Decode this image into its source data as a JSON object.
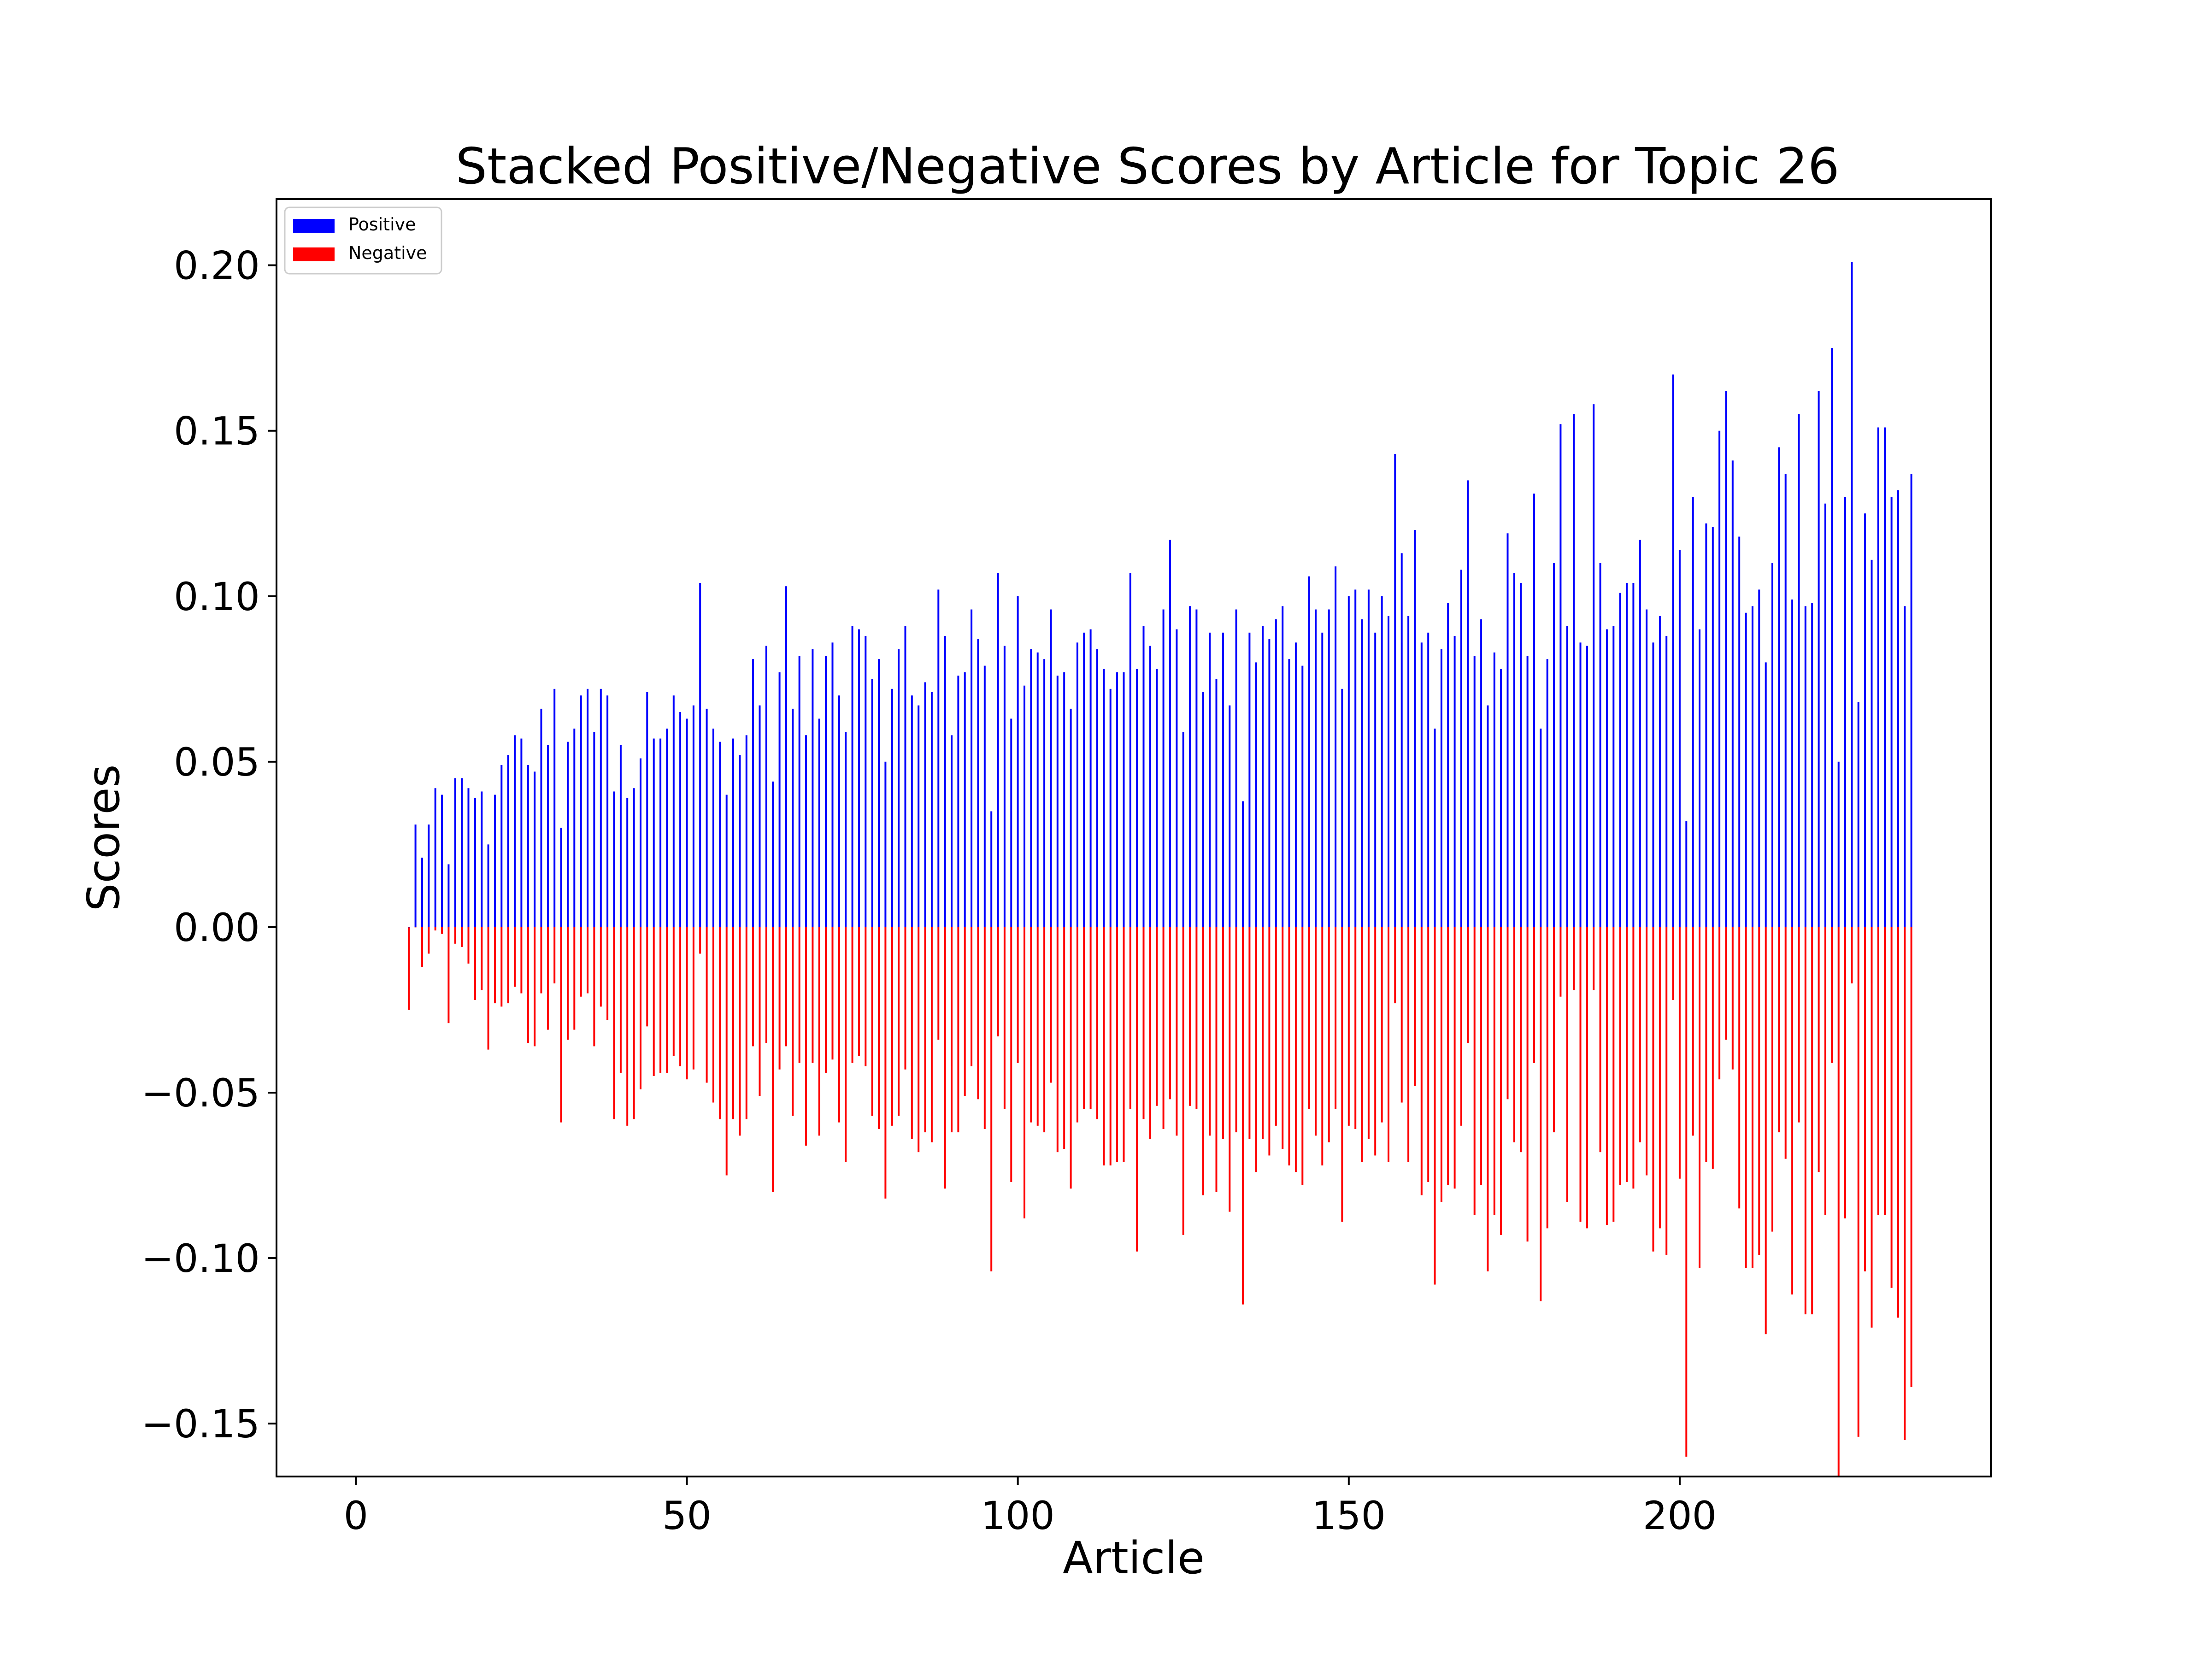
{
  "chart_data": {
    "type": "bar",
    "title": "Stacked Positive/Negative Scores by Article for Topic 26",
    "xlabel": "Article",
    "ylabel": "Scores",
    "xlim": [
      -12,
      247
    ],
    "ylim": [
      -0.166,
      0.22
    ],
    "xticks": [
      "0",
      "50",
      "100",
      "150",
      "200"
    ],
    "yticks": [
      "−0.15",
      "−0.10",
      "−0.05",
      "0.00",
      "0.05",
      "0.10",
      "0.15",
      "0.20"
    ],
    "grid": false,
    "legend_position": "upper-left",
    "x_start": 8,
    "series": [
      {
        "name": "Positive",
        "color": "#0000ff",
        "values": [
          0.0,
          0.031,
          0.021,
          0.031,
          0.042,
          0.04,
          0.019,
          0.045,
          0.045,
          0.042,
          0.039,
          0.041,
          0.025,
          0.04,
          0.049,
          0.052,
          0.058,
          0.057,
          0.049,
          0.047,
          0.066,
          0.055,
          0.072,
          0.03,
          0.056,
          0.06,
          0.07,
          0.072,
          0.059,
          0.072,
          0.07,
          0.041,
          0.055,
          0.039,
          0.042,
          0.051,
          0.071,
          0.057,
          0.057,
          0.06,
          0.07,
          0.065,
          0.063,
          0.067,
          0.104,
          0.066,
          0.06,
          0.056,
          0.04,
          0.057,
          0.052,
          0.058,
          0.081,
          0.067,
          0.085,
          0.044,
          0.077,
          0.103,
          0.066,
          0.082,
          0.058,
          0.084,
          0.063,
          0.082,
          0.086,
          0.07,
          0.059,
          0.091,
          0.09,
          0.088,
          0.075,
          0.081,
          0.05,
          0.072,
          0.084,
          0.091,
          0.07,
          0.067,
          0.074,
          0.071,
          0.102,
          0.088,
          0.058,
          0.076,
          0.077,
          0.096,
          0.087,
          0.079,
          0.035,
          0.107,
          0.085,
          0.063,
          0.1,
          0.073,
          0.084,
          0.083,
          0.081,
          0.096,
          0.076,
          0.077,
          0.066,
          0.086,
          0.089,
          0.09,
          0.084,
          0.078,
          0.072,
          0.077,
          0.077,
          0.107,
          0.078,
          0.091,
          0.085,
          0.078,
          0.096,
          0.117,
          0.09,
          0.059,
          0.097,
          0.096,
          0.071,
          0.089,
          0.075,
          0.089,
          0.067,
          0.096,
          0.038,
          0.089,
          0.08,
          0.091,
          0.087,
          0.093,
          0.097,
          0.081,
          0.086,
          0.079,
          0.106,
          0.096,
          0.089,
          0.096,
          0.109,
          0.072,
          0.1,
          0.102,
          0.093,
          0.102,
          0.089,
          0.1,
          0.094,
          0.143,
          0.113,
          0.094,
          0.12,
          0.086,
          0.089,
          0.06,
          0.084,
          0.098,
          0.088,
          0.108,
          0.135,
          0.082,
          0.093,
          0.067,
          0.083,
          0.078,
          0.119,
          0.107,
          0.104,
          0.082,
          0.131,
          0.06,
          0.081,
          0.11,
          0.152,
          0.091,
          0.155,
          0.086,
          0.085,
          0.158,
          0.11,
          0.09,
          0.091,
          0.101,
          0.104,
          0.104,
          0.117,
          0.096,
          0.086,
          0.094,
          0.088,
          0.167,
          0.114,
          0.032,
          0.13,
          0.09,
          0.122,
          0.121,
          0.15,
          0.162,
          0.141,
          0.118,
          0.095,
          0.097,
          0.102,
          0.08,
          0.11,
          0.145,
          0.137,
          0.099,
          0.155,
          0.097,
          0.098,
          0.162,
          0.128,
          0.175,
          0.05,
          0.13,
          0.201,
          0.068,
          0.125,
          0.111,
          0.151,
          0.151,
          0.13,
          0.132,
          0.097,
          0.137
        ]
      },
      {
        "name": "Negative",
        "color": "#ff0000",
        "values": [
          -0.025,
          0.0,
          -0.012,
          -0.008,
          -0.001,
          -0.002,
          -0.029,
          -0.005,
          -0.006,
          -0.011,
          -0.022,
          -0.019,
          -0.037,
          -0.023,
          -0.024,
          -0.023,
          -0.018,
          -0.02,
          -0.035,
          -0.036,
          -0.02,
          -0.031,
          -0.017,
          -0.059,
          -0.034,
          -0.031,
          -0.021,
          -0.02,
          -0.036,
          -0.024,
          -0.028,
          -0.058,
          -0.044,
          -0.06,
          -0.058,
          -0.049,
          -0.03,
          -0.045,
          -0.044,
          -0.044,
          -0.039,
          -0.042,
          -0.046,
          -0.043,
          -0.008,
          -0.047,
          -0.053,
          -0.058,
          -0.075,
          -0.058,
          -0.063,
          -0.058,
          -0.036,
          -0.051,
          -0.035,
          -0.08,
          -0.043,
          -0.036,
          -0.057,
          -0.041,
          -0.066,
          -0.041,
          -0.063,
          -0.044,
          -0.04,
          -0.059,
          -0.071,
          -0.041,
          -0.039,
          -0.042,
          -0.057,
          -0.061,
          -0.082,
          -0.06,
          -0.057,
          -0.043,
          -0.064,
          -0.068,
          -0.062,
          -0.065,
          -0.034,
          -0.079,
          -0.062,
          -0.062,
          -0.051,
          -0.042,
          -0.052,
          -0.061,
          -0.104,
          -0.033,
          -0.055,
          -0.077,
          -0.041,
          -0.088,
          -0.059,
          -0.06,
          -0.062,
          -0.047,
          -0.068,
          -0.067,
          -0.079,
          -0.059,
          -0.055,
          -0.055,
          -0.058,
          -0.072,
          -0.072,
          -0.071,
          -0.071,
          -0.055,
          -0.098,
          -0.058,
          -0.064,
          -0.054,
          -0.061,
          -0.052,
          -0.063,
          -0.093,
          -0.054,
          -0.055,
          -0.081,
          -0.063,
          -0.08,
          -0.064,
          -0.086,
          -0.062,
          -0.114,
          -0.064,
          -0.074,
          -0.064,
          -0.069,
          -0.06,
          -0.067,
          -0.072,
          -0.074,
          -0.078,
          -0.055,
          -0.063,
          -0.072,
          -0.065,
          -0.055,
          -0.089,
          -0.06,
          -0.061,
          -0.071,
          -0.064,
          -0.069,
          -0.059,
          -0.071,
          -0.023,
          -0.053,
          -0.071,
          -0.048,
          -0.081,
          -0.077,
          -0.108,
          -0.083,
          -0.078,
          -0.079,
          -0.06,
          -0.035,
          -0.087,
          -0.078,
          -0.104,
          -0.087,
          -0.093,
          -0.052,
          -0.065,
          -0.068,
          -0.095,
          -0.041,
          -0.113,
          -0.091,
          -0.062,
          -0.021,
          -0.083,
          -0.019,
          -0.089,
          -0.091,
          -0.019,
          -0.068,
          -0.09,
          -0.089,
          -0.078,
          -0.077,
          -0.079,
          -0.065,
          -0.075,
          -0.098,
          -0.091,
          -0.099,
          -0.022,
          -0.076,
          -0.16,
          -0.063,
          -0.103,
          -0.071,
          -0.073,
          -0.046,
          -0.034,
          -0.043,
          -0.085,
          -0.103,
          -0.103,
          -0.099,
          -0.123,
          -0.092,
          -0.062,
          -0.07,
          -0.111,
          -0.059,
          -0.117,
          -0.117,
          -0.074,
          -0.087,
          -0.041,
          -0.166,
          -0.088,
          -0.017,
          -0.154,
          -0.104,
          -0.121,
          -0.087,
          -0.087,
          -0.109,
          -0.118,
          -0.155,
          -0.139
        ]
      }
    ]
  }
}
